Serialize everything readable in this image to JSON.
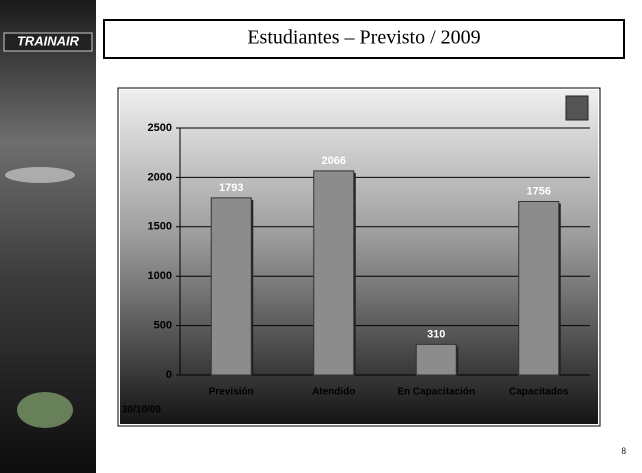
{
  "chart_data": {
    "type": "bar",
    "title": "Estudiantes – Previsto / 2009",
    "categories": [
      "Previsión",
      "Atendido",
      "En Capacitación",
      "Capacitados"
    ],
    "values": [
      1793,
      2066,
      310,
      1756
    ],
    "color": "#8c8c8c",
    "ylim": [
      0,
      2500
    ],
    "yticks": [
      0,
      500,
      1000,
      1500,
      2000,
      2500
    ],
    "grid": true,
    "date": "30/10/09"
  },
  "slide": {
    "logo": "TRAINAIR",
    "page_number": 8
  }
}
